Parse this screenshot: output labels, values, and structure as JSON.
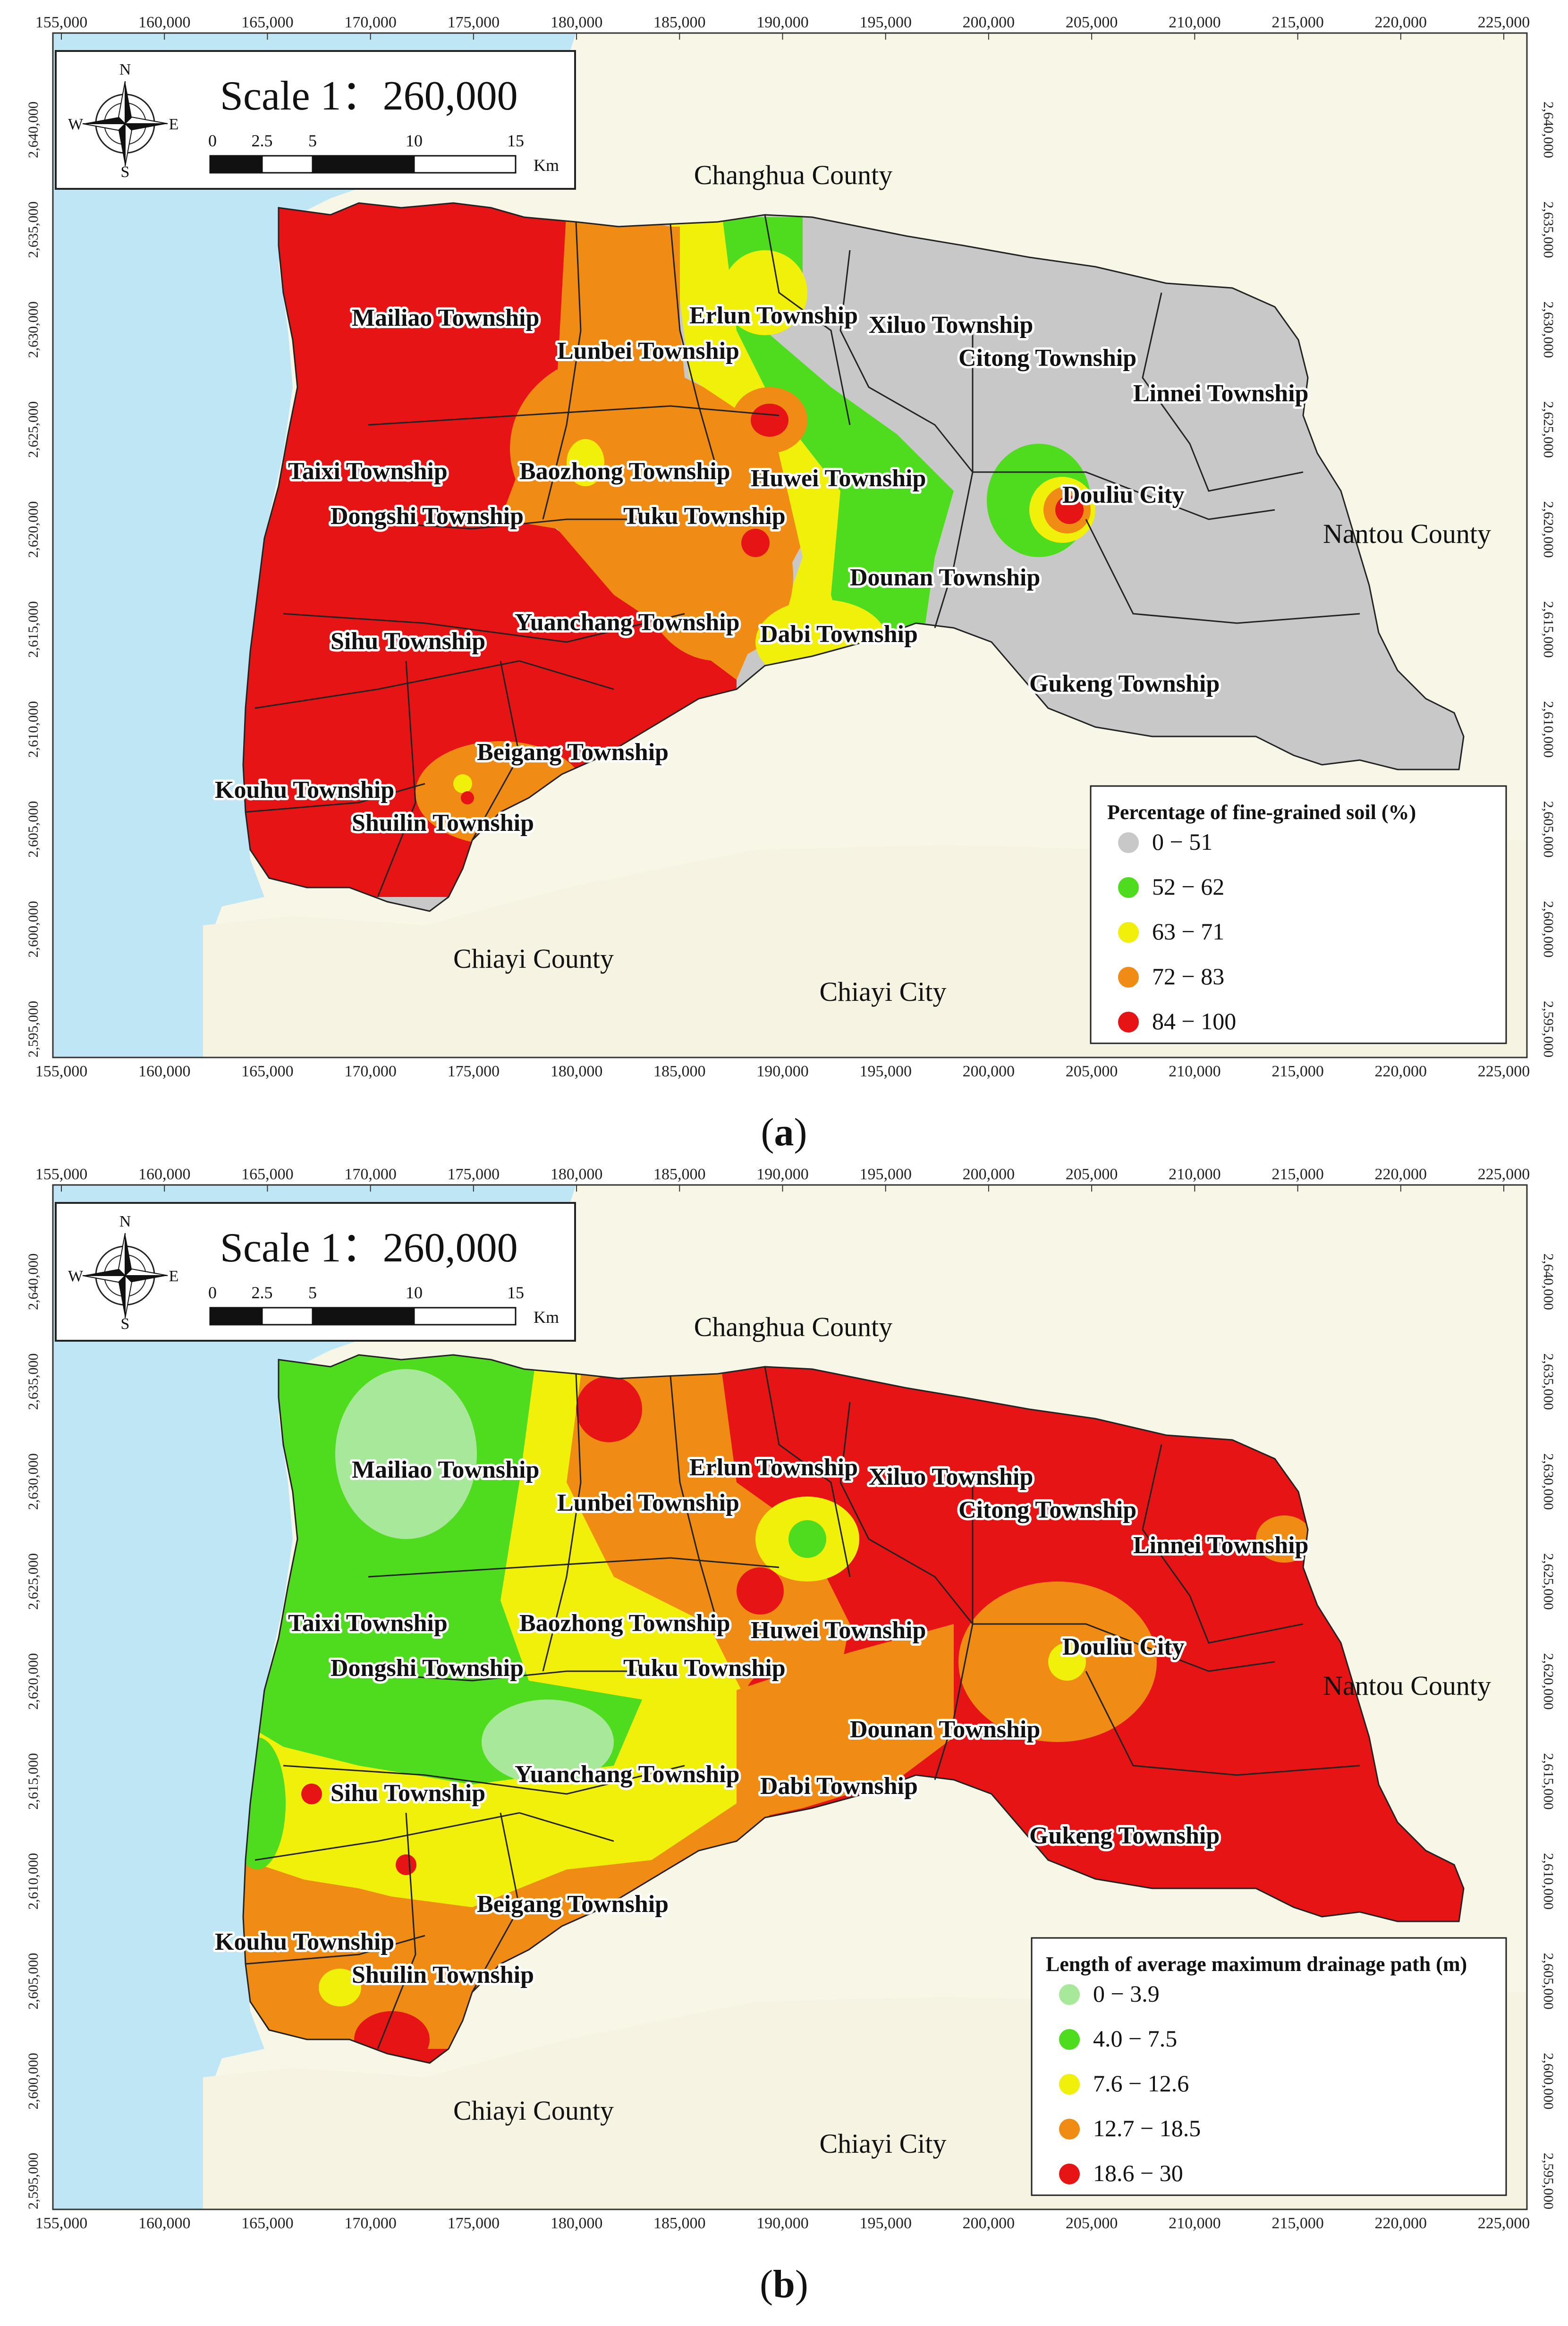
{
  "axes": {
    "x_ticks": [
      "155,000",
      "160,000",
      "165,000",
      "170,000",
      "175,000",
      "180,000",
      "185,000",
      "190,000",
      "195,000",
      "200,000",
      "205,000",
      "210,000",
      "215,000",
      "220,000",
      "225,000"
    ],
    "y_ticks": [
      "2,640,000",
      "2,635,000",
      "2,630,000",
      "2,625,000",
      "2,620,000",
      "2,615,000",
      "2,610,000",
      "2,605,000",
      "2,600,000",
      "2,595,000"
    ]
  },
  "scale_box": {
    "title": "Scale 1：260,000",
    "bar_numbers": [
      "0",
      "2.5",
      "5",
      "10",
      "15"
    ],
    "unit": "Km",
    "compass": {
      "n": "N",
      "s": "S",
      "e": "E",
      "w": "W"
    }
  },
  "counties": {
    "changhua": "Changhua County",
    "nantou": "Nantou County",
    "chiayi_county": "Chiayi County",
    "chiayi_city": "Chiayi City"
  },
  "townships": {
    "mailiao": "Mailiao Township",
    "lunbei": "Lunbei Township",
    "erlun": "Erlun Township",
    "xiluo": "Xiluo Township",
    "citong": "Citong Township",
    "linnei": "Linnei Township",
    "taixi": "Taixi Township",
    "baozhong": "Baozhong Township",
    "huwei": "Huwei Township",
    "douliu": "Douliu City",
    "dongshi": "Dongshi Township",
    "tuku": "Tuku Township",
    "dounan": "Dounan Township",
    "yuanchang": "Yuanchang Township",
    "dabi": "Dabi Township",
    "sihu": "Sihu Township",
    "gukeng": "Gukeng Township",
    "beigang": "Beigang Township",
    "kouhu": "Kouhu Township",
    "shuilin": "Shuilin Township"
  },
  "panel_a": {
    "caption": "a",
    "legend_title": "Percentage of fine-grained soil (%)",
    "legend": [
      {
        "label": "0 − 51",
        "color": "#c8c8c8"
      },
      {
        "label": "52 − 62",
        "color": "#4fdc1e"
      },
      {
        "label": "63 − 71",
        "color": "#f0f00a"
      },
      {
        "label": "72 − 83",
        "color": "#f08c14"
      },
      {
        "label": "84 − 100",
        "color": "#e61414"
      }
    ]
  },
  "panel_b": {
    "caption": "b",
    "legend_title": "Length of average maximum drainage path (m)",
    "legend": [
      {
        "label": "0 − 3.9",
        "color": "#a8e89a"
      },
      {
        "label": "4.0 − 7.5",
        "color": "#4fdc1e"
      },
      {
        "label": "7.6 − 12.6",
        "color": "#f0f00a"
      },
      {
        "label": "12.7 − 18.5",
        "color": "#f08c14"
      },
      {
        "label": "18.6 − 30",
        "color": "#e61414"
      }
    ]
  },
  "colors": {
    "sea": "#bfe6f5",
    "land": "#f8f6e6"
  }
}
